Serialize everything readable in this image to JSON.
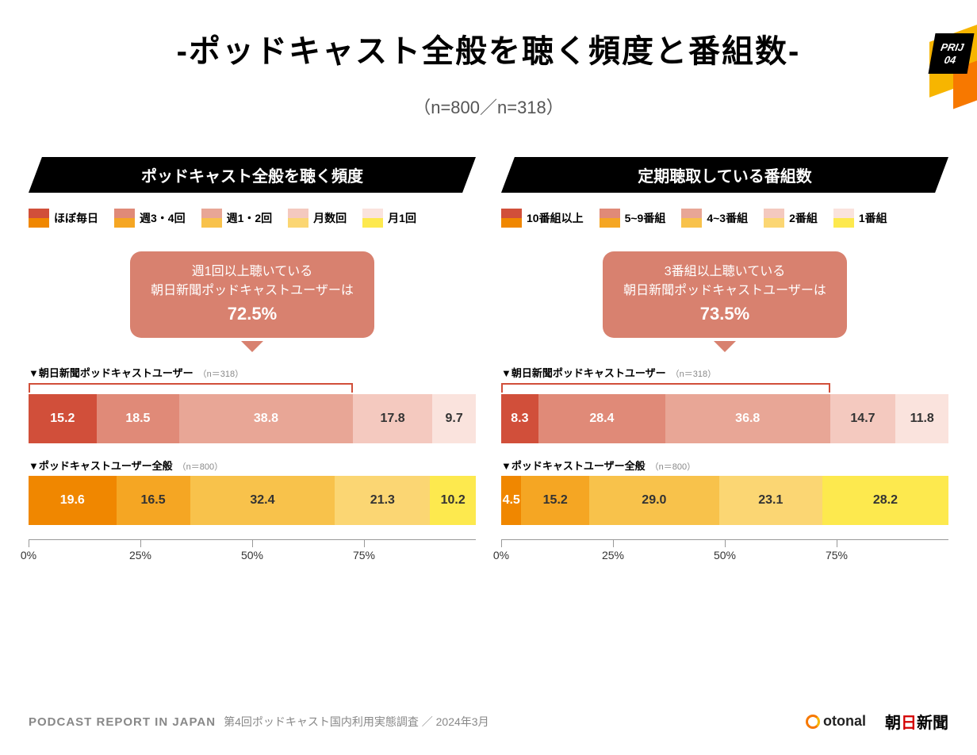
{
  "badge": {
    "line1": "PRIJ",
    "line2": "04"
  },
  "title": "-ポッドキャスト全般を聴く頻度と番組数-",
  "subtitle": "（n=800／n=318）",
  "palette_pink": [
    "#d14f3a",
    "#e08a78",
    "#e8a696",
    "#f4c9bf",
    "#fae3dd"
  ],
  "palette_orange": [
    "#f08700",
    "#f5a623",
    "#f8c24b",
    "#fbd673",
    "#fde94e"
  ],
  "axis": {
    "ticks": [
      0,
      25,
      50,
      75
    ],
    "labels": [
      "0%",
      "25%",
      "50%",
      "75%"
    ]
  },
  "left": {
    "header": "ポッドキャスト全般を聴く頻度",
    "legend": [
      "ほぼ毎日",
      "週3・4回",
      "週1・2回",
      "月数回",
      "月1回"
    ],
    "callout": {
      "line1": "週1回以上聴いている",
      "line2": "朝日新聞ポッドキャストユーザーは",
      "pct": "72.5%"
    },
    "bar1": {
      "label": "▼朝日新聞ポッドキャストユーザー",
      "n": "（n＝318）",
      "values": [
        15.2,
        18.5,
        38.8,
        17.8,
        9.7
      ],
      "bracket_pct": 72.5,
      "bracket_color": "#d14f3a"
    },
    "bar2": {
      "label": "▼ポッドキャストユーザー全般",
      "n": "（n＝800）",
      "values": [
        19.6,
        16.5,
        32.4,
        21.3,
        10.2
      ]
    }
  },
  "right": {
    "header": "定期聴取している番組数",
    "legend": [
      "10番組以上",
      "5~9番組",
      "4~3番組",
      "2番組",
      "1番組"
    ],
    "callout": {
      "line1": "3番組以上聴いている",
      "line2": "朝日新聞ポッドキャストユーザーは",
      "pct": "73.5%"
    },
    "bar1": {
      "label": "▼朝日新聞ポッドキャストユーザー",
      "n": "（n＝318）",
      "values": [
        8.3,
        28.4,
        36.8,
        14.7,
        11.8
      ],
      "bracket_pct": 73.5,
      "bracket_color": "#d14f3a"
    },
    "bar2": {
      "label": "▼ポッドキャストユーザー全般",
      "n": "（n＝800）",
      "values": [
        4.5,
        15.2,
        29.0,
        23.1,
        28.2
      ]
    }
  },
  "footer": {
    "brand_en": "PODCAST REPORT IN JAPAN",
    "brand_jp": "第4回ポッドキャスト国内利用実態調査 ／ 2024年3月",
    "logo1": "otonal",
    "logo2_a": "朝",
    "logo2_b": "日",
    "logo2_c": "新聞"
  }
}
